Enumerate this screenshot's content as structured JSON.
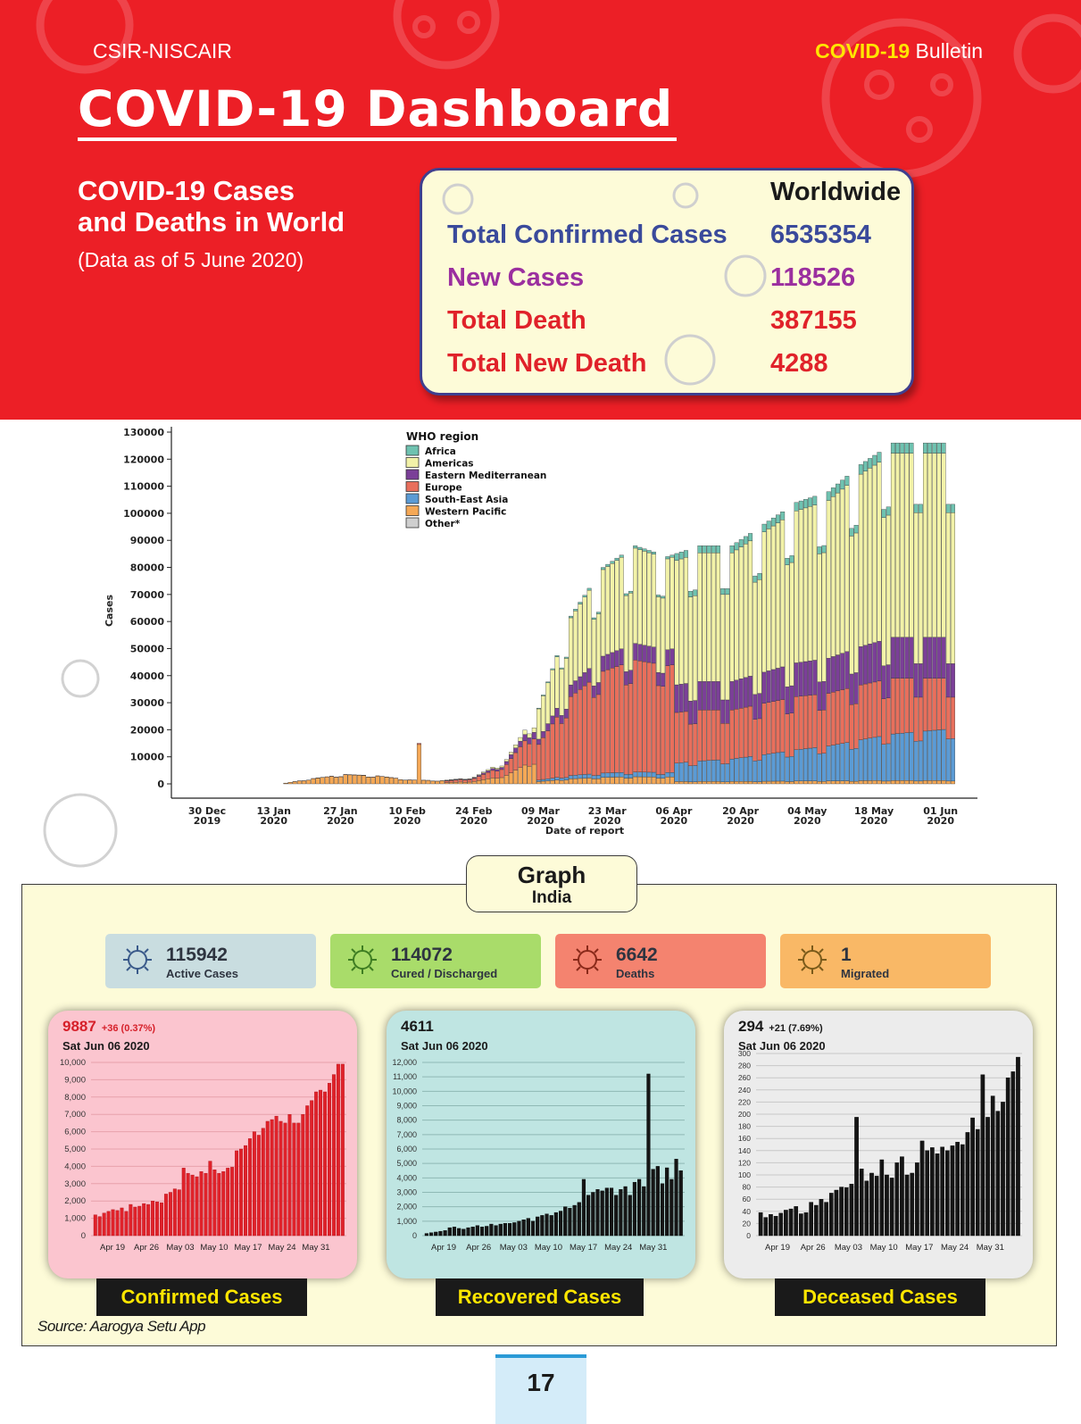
{
  "header": {
    "org": "CSIR-NISCAIR",
    "bulletin_highlight": "COVID-19",
    "bulletin_rest": " Bulletin",
    "title": "COVID-19 Dashboard",
    "subtitle_line1": "COVID-19 Cases",
    "subtitle_line2": "and Deaths in World",
    "data_as_of": "(Data as of 5 June 2020)"
  },
  "worldwide": {
    "heading": "Worldwide",
    "rows": [
      {
        "label": "Total Confirmed Cases",
        "value": "6535354",
        "color": "#3a4a9b"
      },
      {
        "label": "New Cases",
        "value": "118526",
        "color": "#9b2f9f"
      },
      {
        "label": "Total Death",
        "value": "387155",
        "color": "#e0222a"
      },
      {
        "label": "Total New Death",
        "value": "4288",
        "color": "#e0222a"
      }
    ]
  },
  "india": {
    "graph_label": "Graph",
    "graph_sublabel": "India",
    "stats": [
      {
        "value": "115942",
        "label": "Active Cases",
        "bg": "#c9dde0",
        "icon": "virus-icon"
      },
      {
        "value": "114072",
        "label": "Cured / Discharged",
        "bg": "#a9dc6a",
        "icon": "virus-icon"
      },
      {
        "value": "6642",
        "label": "Deaths",
        "bg": "#f4836f",
        "icon": "virus-icon"
      },
      {
        "value": "1",
        "label": "Migrated",
        "bg": "#f9b866",
        "icon": "virus-icon"
      }
    ],
    "panels": [
      {
        "count": "9887",
        "delta": "+36 (0.37%)",
        "delta_color": "#d6202a",
        "date": "Sat Jun 06 2020",
        "caption": "Confirmed Cases"
      },
      {
        "count": "4611",
        "delta": "",
        "delta_color": "#1a1a1a",
        "date": "Sat Jun 06 2020",
        "caption": "Recovered Cases"
      },
      {
        "count": "294",
        "delta": "+21 (7.69%)",
        "delta_color": "#1a1a1a",
        "date": "Sat Jun 06 2020",
        "caption": "Deceased Cases"
      }
    ],
    "source": "Source: Aarogya Setu App"
  },
  "page_number": "17",
  "chart_data": [
    {
      "type": "bar",
      "stacked": true,
      "xlabel": "Date of report",
      "ylabel": "Cases",
      "ylim": [
        0,
        130000
      ],
      "yticks": [
        0,
        10000,
        20000,
        30000,
        40000,
        50000,
        60000,
        70000,
        80000,
        90000,
        100000,
        110000,
        120000,
        130000
      ],
      "x_tick_labels": [
        [
          "30 Dec",
          "2019"
        ],
        [
          "13 Jan",
          "2020"
        ],
        [
          "27 Jan",
          "2020"
        ],
        [
          "10 Feb",
          "2020"
        ],
        [
          "24 Feb",
          "2020"
        ],
        [
          "09 Mar",
          "2020"
        ],
        [
          "23 Mar",
          "2020"
        ],
        [
          "06 Apr",
          "2020"
        ],
        [
          "20 Apr",
          "2020"
        ],
        [
          "04 May",
          "2020"
        ],
        [
          "18 May",
          "2020"
        ],
        [
          "01 Jun",
          "2020"
        ]
      ],
      "legend_title": "WHO region",
      "legend_position": "top-center",
      "series": [
        {
          "name": "Africa",
          "color": "#6fc2b0"
        },
        {
          "name": "Americas",
          "color": "#f2f2a8"
        },
        {
          "name": "Eastern Mediterranean",
          "color": "#7b3f98"
        },
        {
          "name": "Europe",
          "color": "#e86f5c"
        },
        {
          "name": "South-East Asia",
          "color": "#5b9bd5"
        },
        {
          "name": "Western Pacific",
          "color": "#f5a856"
        },
        {
          "name": "Other*",
          "color": "#cfcfcf"
        }
      ],
      "totals_by_week": [
        0,
        0,
        0,
        2000,
        3500,
        3000,
        1500,
        1200,
        2500,
        9000,
        28000,
        62000,
        80000,
        88000,
        84000,
        88000,
        88000,
        96000,
        104000,
        108000,
        118000,
        126000
      ]
    },
    {
      "type": "bar",
      "title": "Confirmed Cases",
      "ylim": [
        0,
        10000
      ],
      "yticks": [
        0,
        1000,
        2000,
        3000,
        4000,
        5000,
        6000,
        7000,
        8000,
        9000,
        10000
      ],
      "x_tick_labels": [
        "Apr 19",
        "Apr 26",
        "May 03",
        "May 10",
        "May 17",
        "May 24",
        "May 31"
      ],
      "color": "#e0222a",
      "values": [
        1200,
        1100,
        1300,
        1400,
        1500,
        1450,
        1600,
        1400,
        1800,
        1650,
        1700,
        1850,
        1800,
        2000,
        1950,
        1900,
        2400,
        2500,
        2700,
        2650,
        3900,
        3600,
        3500,
        3400,
        3700,
        3600,
        4300,
        3800,
        3600,
        3700,
        3900,
        3950,
        4900,
        5000,
        5200,
        5600,
        6000,
        5800,
        6200,
        6600,
        6700,
        6900,
        6600,
        6500,
        7000,
        6500,
        6500,
        7000,
        7500,
        7800,
        8300,
        8400,
        8300,
        8800,
        9300,
        9900,
        9900
      ]
    },
    {
      "type": "bar",
      "title": "Recovered Cases",
      "ylim": [
        0,
        12000
      ],
      "yticks": [
        0,
        1000,
        2000,
        3000,
        4000,
        5000,
        6000,
        7000,
        8000,
        9000,
        10000,
        11000,
        12000
      ],
      "x_tick_labels": [
        "Apr 19",
        "Apr 26",
        "May 03",
        "May 10",
        "May 17",
        "May 24",
        "May 31"
      ],
      "color": "#151515",
      "values": [
        150,
        200,
        250,
        300,
        350,
        550,
        600,
        500,
        450,
        550,
        600,
        700,
        600,
        650,
        800,
        700,
        800,
        850,
        850,
        900,
        1000,
        1100,
        1200,
        1000,
        1300,
        1400,
        1500,
        1400,
        1600,
        1700,
        2000,
        1900,
        2100,
        2300,
        3900,
        2800,
        3000,
        3200,
        3100,
        3300,
        3300,
        2800,
        3200,
        3400,
        2800,
        3700,
        3900,
        3400,
        11200,
        4600,
        4800,
        3600,
        4700,
        3900,
        5300,
        4500
      ]
    },
    {
      "type": "bar",
      "title": "Deceased Cases",
      "ylim": [
        0,
        300
      ],
      "yticks": [
        0,
        20,
        40,
        60,
        80,
        100,
        120,
        140,
        160,
        180,
        200,
        220,
        240,
        260,
        280,
        300
      ],
      "x_tick_labels": [
        "Apr 19",
        "Apr 26",
        "May 03",
        "May 10",
        "May 17",
        "May 24",
        "May 31"
      ],
      "color": "#151515",
      "values": [
        38,
        30,
        35,
        32,
        37,
        42,
        44,
        48,
        36,
        38,
        55,
        50,
        60,
        55,
        70,
        75,
        80,
        79,
        85,
        195,
        110,
        90,
        103,
        98,
        125,
        100,
        95,
        120,
        130,
        100,
        103,
        120,
        156,
        140,
        145,
        135,
        146,
        140,
        148,
        154,
        150,
        170,
        194,
        175,
        265,
        195,
        230,
        205,
        220,
        260,
        270,
        294
      ]
    }
  ]
}
